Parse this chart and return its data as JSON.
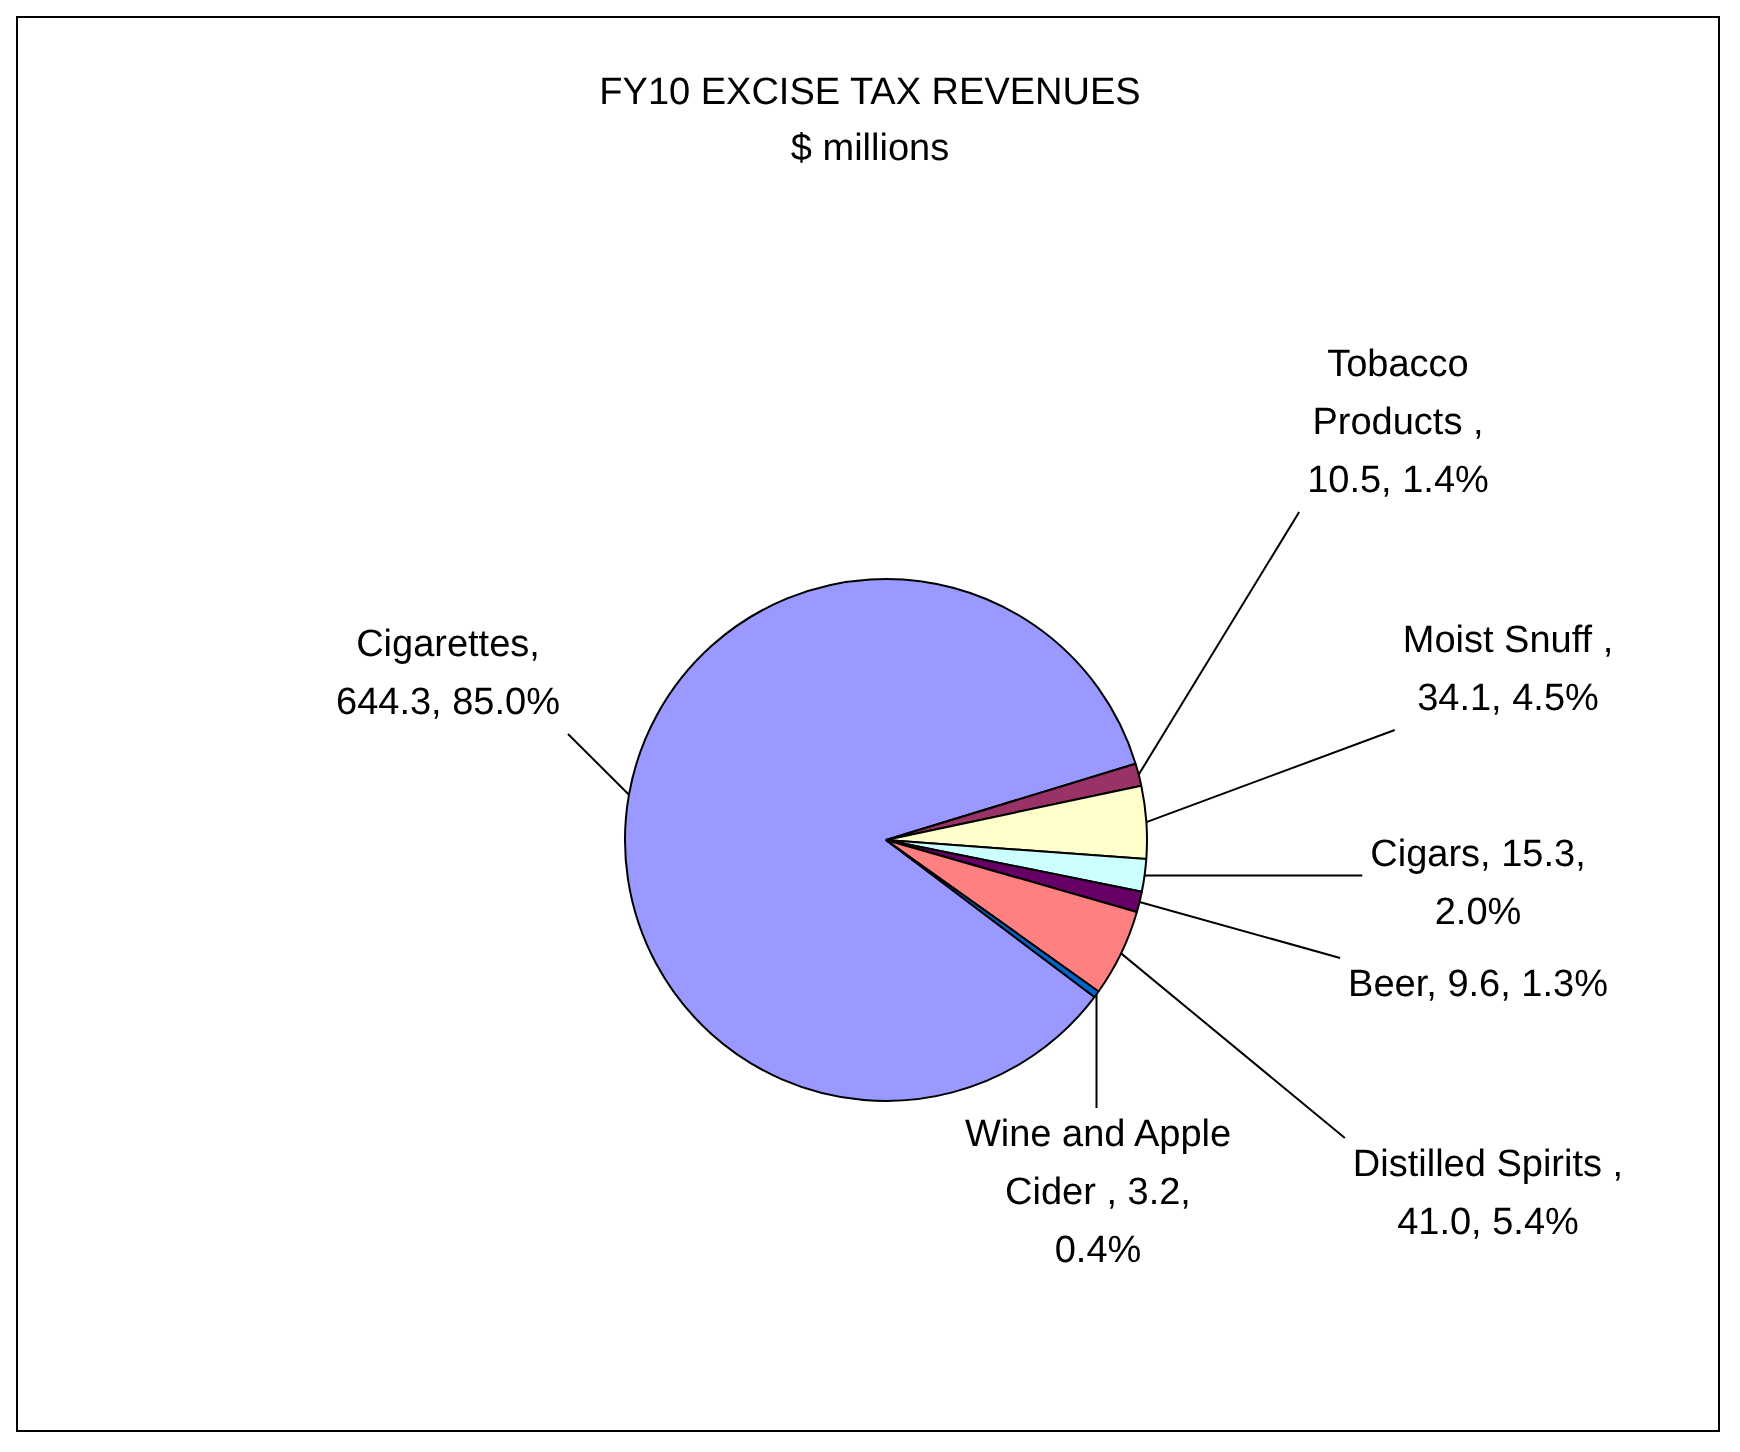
{
  "chart_data": {
    "type": "pie",
    "title": "FY10 EXCISE TAX REVENUES",
    "subtitle": "$ millions",
    "categories": [
      "Cigarettes",
      "Tobacco Products ",
      "Moist Snuff ",
      "Cigars",
      "Beer",
      "Distilled Spirits ",
      "Wine and Apple Cider "
    ],
    "values": [
      644.3,
      10.5,
      34.1,
      15.3,
      9.6,
      41.0,
      3.2
    ],
    "value_labels": [
      ", 644.3, 85.0%",
      ", 10.5, 1.4%",
      ", 34.1, 4.5%",
      ", 15.3, 2.0%",
      ", 9.6, 1.3%",
      ", 41.0, 5.4%",
      ", 3.2, 0.4%"
    ],
    "colors": [
      "#9999ff",
      "#993366",
      "#ffffcc",
      "#ccffff",
      "#660066",
      "#ff8080",
      "#0066cc"
    ],
    "legend": false
  }
}
